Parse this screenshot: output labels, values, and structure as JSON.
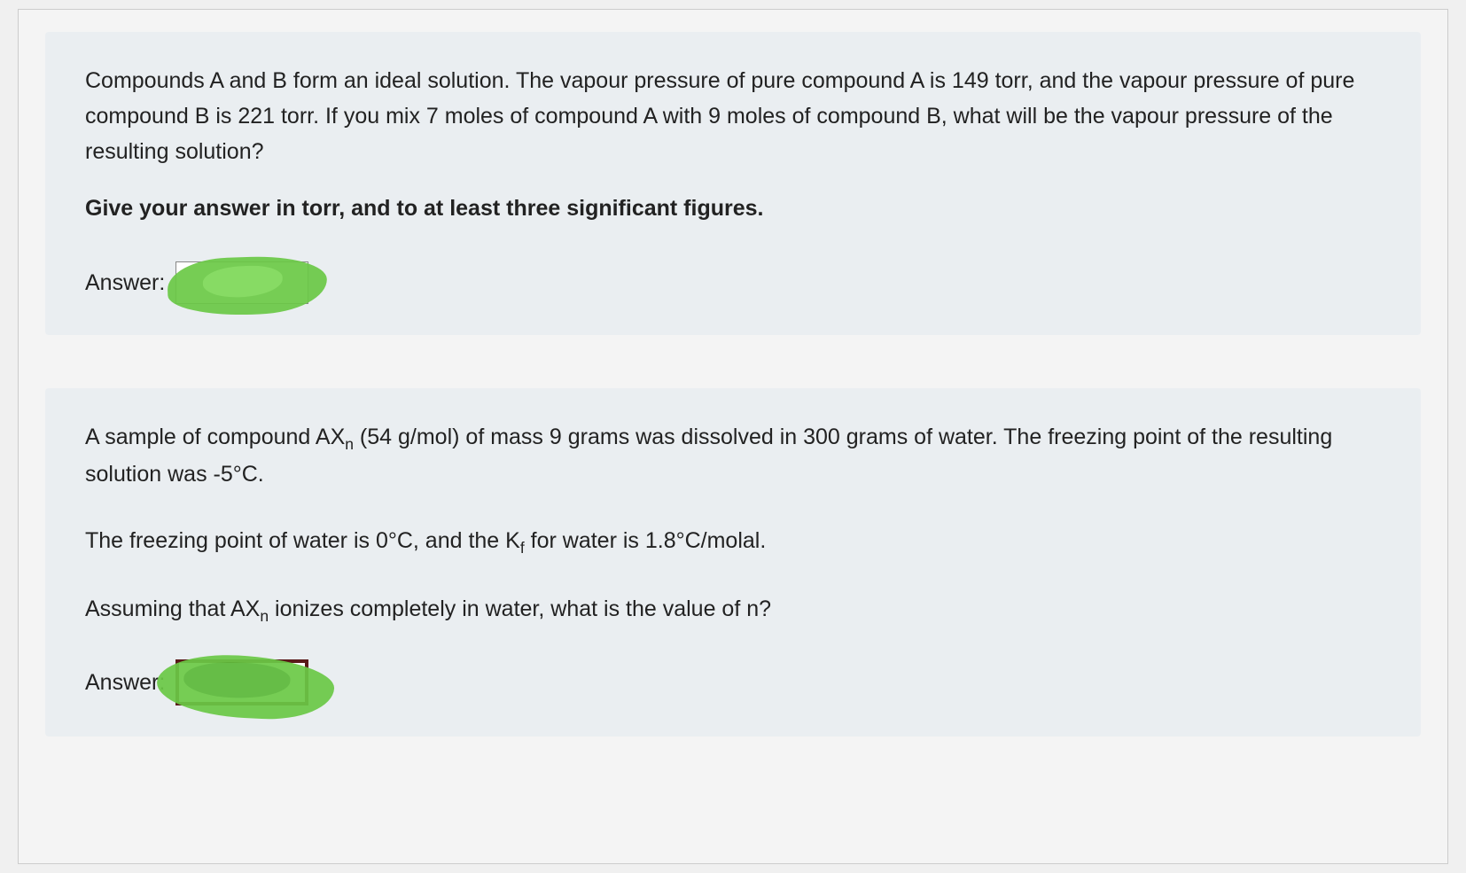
{
  "question1": {
    "body": "Compounds A and B form an ideal solution.  The vapour pressure of pure compound A is 149 torr, and the vapour pressure of pure compound B is 221 torr.  If you mix 7 moles of compound A with 9 moles of compound B, what will be the vapour pressure of the resulting solution?",
    "instruction": "Give your answer in torr, and to at least three significant figures.",
    "answer_label": "Answer:"
  },
  "question2": {
    "line1_pre": "A sample of compound AX",
    "line1_sub": "n",
    "line1_post": " (54 g/mol) of mass 9 grams was dissolved in 300 grams of water.  The freezing point of the resulting solution was -5°C.",
    "line2_pre": "The freezing point of water is 0°C, and the K",
    "line2_sub": "f",
    "line2_post": " for water is 1.8°C/molal.",
    "line3_pre": "Assuming that AX",
    "line3_sub": "n",
    "line3_post": " ionizes completely in water, what is the value of n?",
    "answer_label": "Answer:"
  }
}
